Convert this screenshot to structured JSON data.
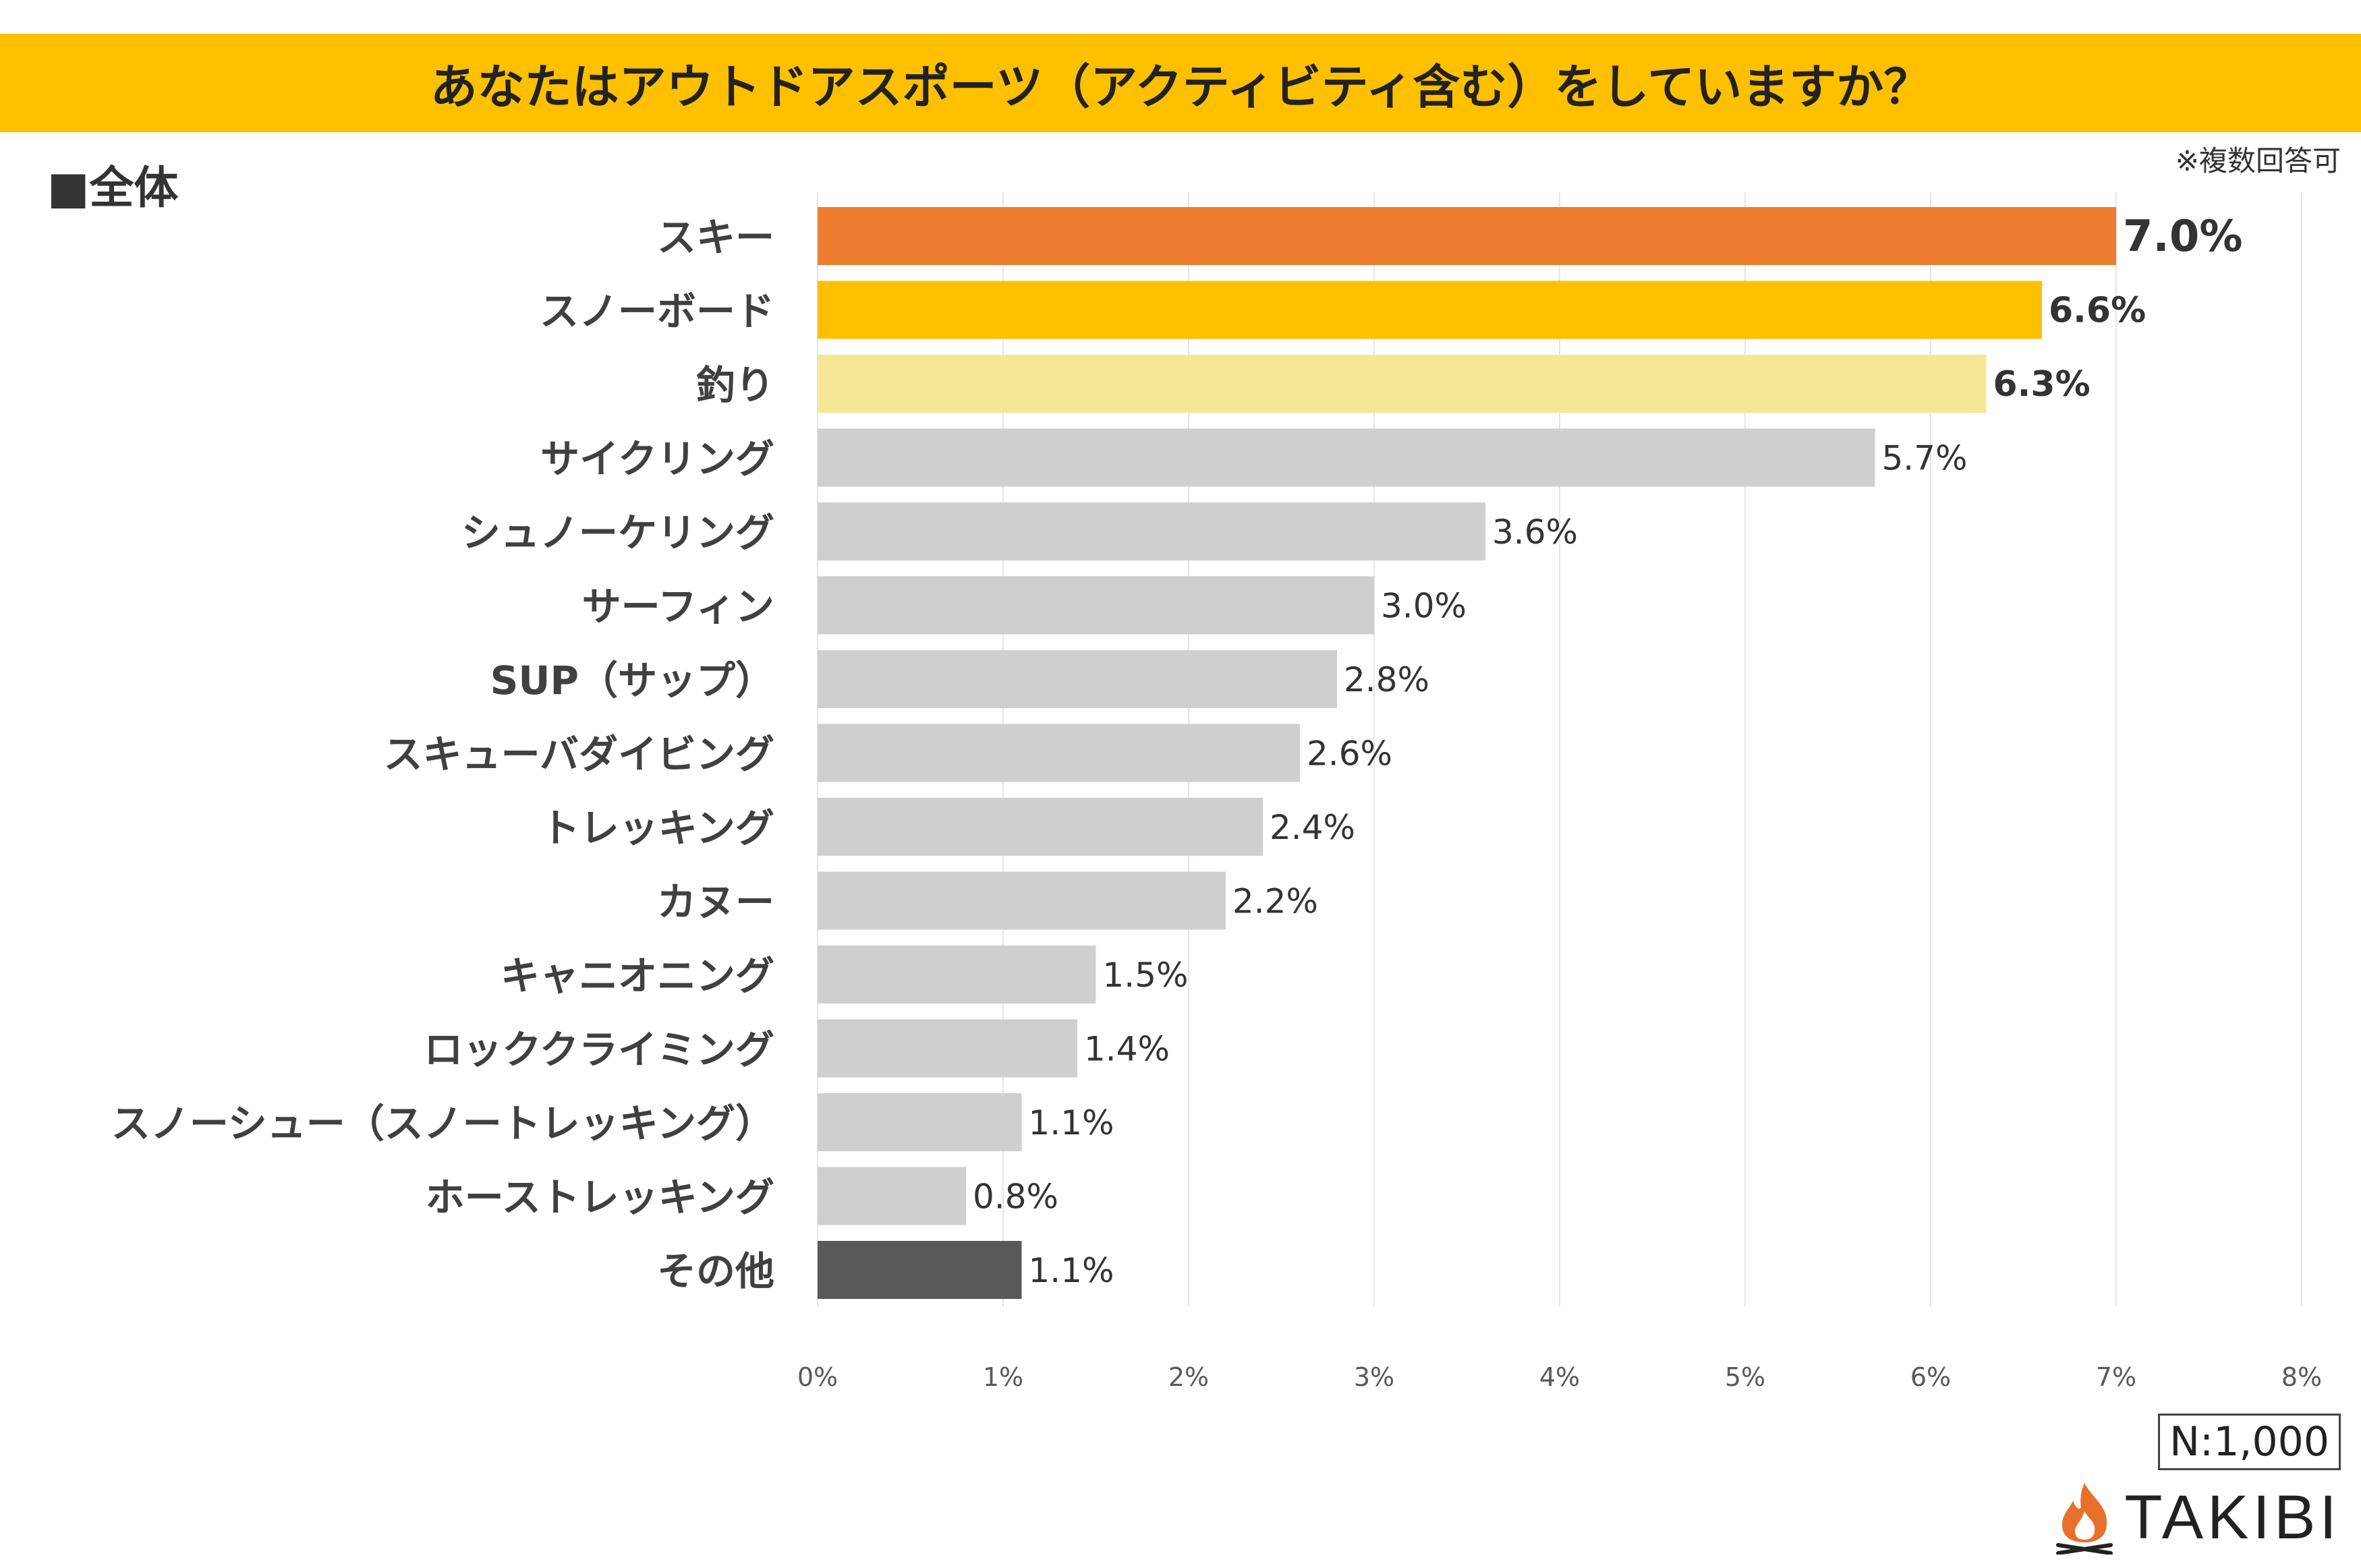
{
  "title": "あなたはアウトドアスポーツ（アクティビティ含む）をしていますか？",
  "section_label": "■全体",
  "note": "※複数回答可",
  "sample_size": "N:1,000",
  "brand": "TAKIBI",
  "colors": {
    "title_bg": "#FFC000",
    "rank1": "#ED7D31",
    "rank2": "#FFC000",
    "rank3": "#F5E796",
    "default": "#D0CECE",
    "other": "#595959",
    "grid": "#E6E6E6",
    "brand_flame": "#E8702A"
  },
  "chart_data": {
    "type": "bar",
    "orientation": "horizontal",
    "categories": [
      "スキー",
      "スノーボード",
      "釣り",
      "サイクリング",
      "シュノーケリング",
      "サーフィン",
      "SUP（サップ）",
      "スキューバダイビング",
      "トレッキング",
      "カヌー",
      "キャニオニング",
      "ロッククライミング",
      "スノーシュー（スノートレッキング）",
      "ホーストレッキング",
      "その他"
    ],
    "values": [
      7.0,
      6.6,
      6.3,
      5.7,
      3.6,
      3.0,
      2.8,
      2.6,
      2.4,
      2.2,
      1.5,
      1.4,
      1.1,
      0.8,
      1.1
    ],
    "value_labels": [
      "7.0%",
      "6.6%",
      "6.3%",
      "5.7%",
      "3.6%",
      "3.0%",
      "2.8%",
      "2.6%",
      "2.4%",
      "2.2%",
      "1.5%",
      "1.4%",
      "1.1%",
      "0.8%",
      "1.1%"
    ],
    "xlim": [
      0,
      8
    ],
    "xticks": [
      "0%",
      "1%",
      "2%",
      "3%",
      "4%",
      "5%",
      "6%",
      "7%",
      "8%"
    ],
    "grid": true,
    "legend": "none"
  }
}
